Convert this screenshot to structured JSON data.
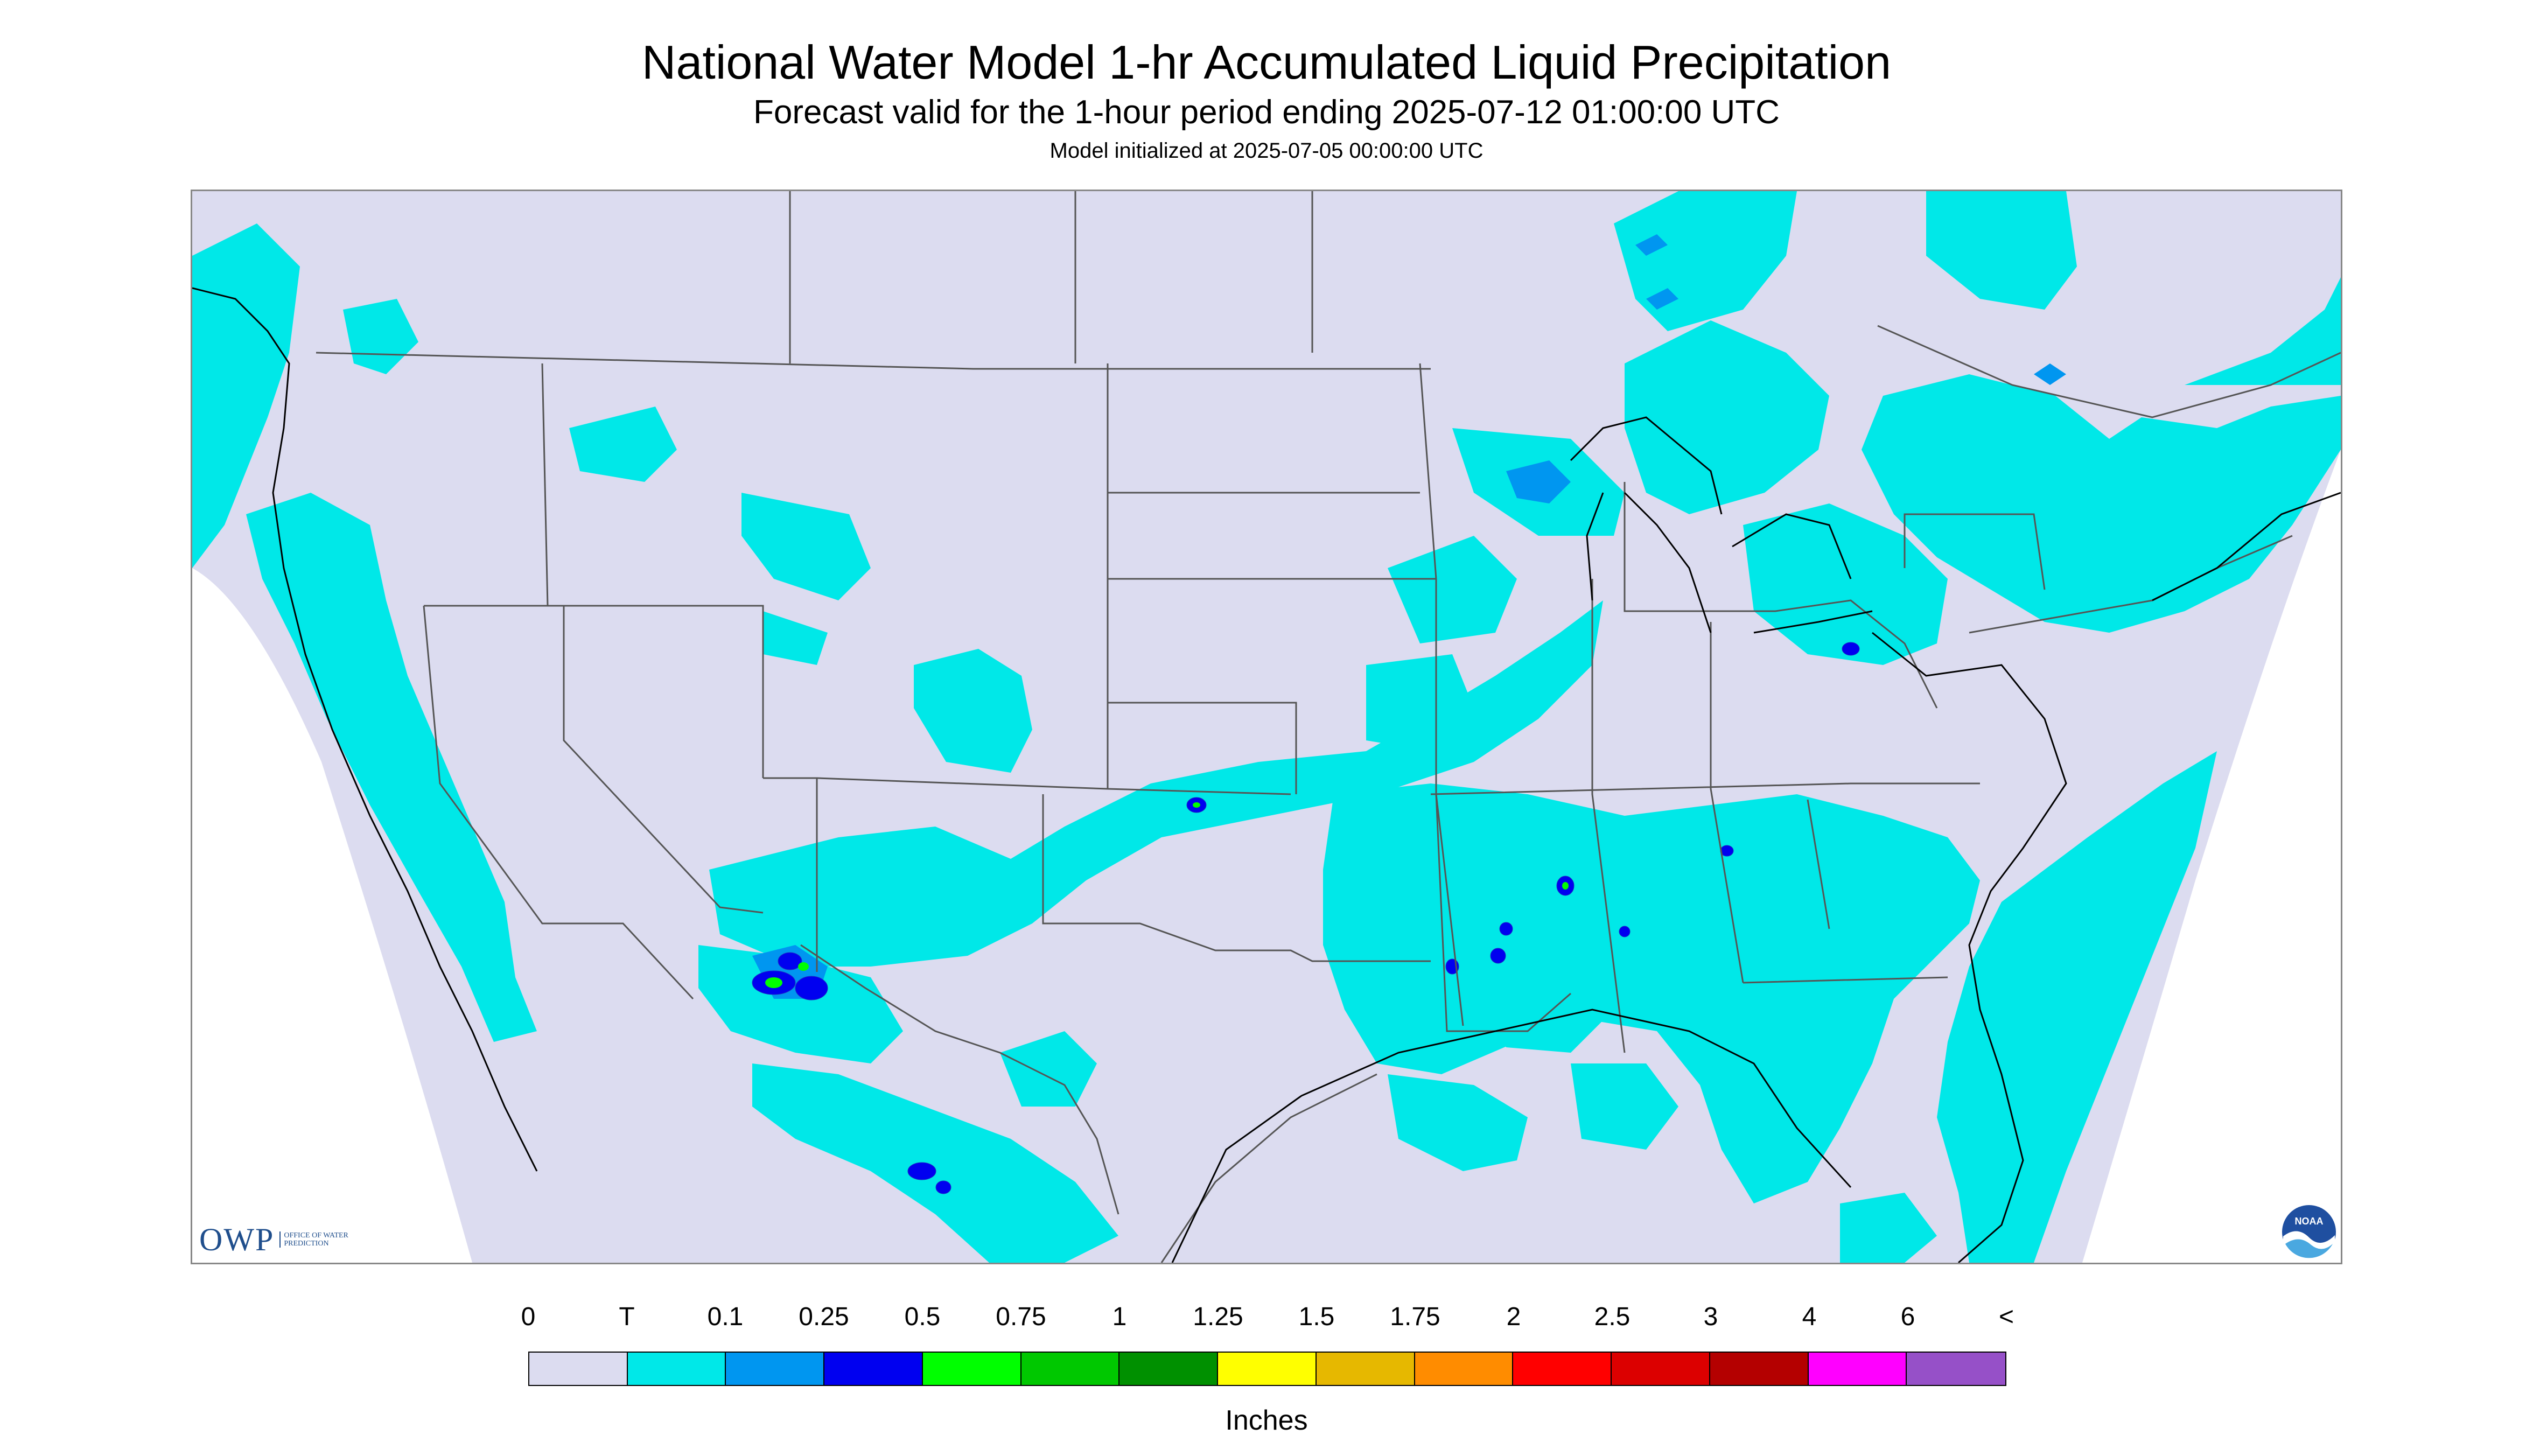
{
  "header": {
    "title": "National Water Model 1-hr Accumulated Liquid Precipitation",
    "subtitle": "Forecast valid for the 1-hour period ending 2025-07-12 01:00:00 UTC",
    "init": "Model initialized at 2025-07-05 00:00:00 UTC"
  },
  "logos": {
    "owp_main": "OWP",
    "owp_sub": "OFFICE OF WATER PREDICTION",
    "noaa": "NOAA"
  },
  "legend": {
    "labels": [
      "0",
      "T",
      "0.1",
      "0.25",
      "0.5",
      "0.75",
      "1",
      "1.25",
      "1.5",
      "1.75",
      "2",
      "2.5",
      "3",
      "4",
      "6",
      "<"
    ],
    "colors": [
      "#dcdcf0",
      "#00e8e8",
      "#0096f0",
      "#0000f0",
      "#00ff00",
      "#00c800",
      "#009000",
      "#ffff00",
      "#e6b800",
      "#ff8c00",
      "#ff0000",
      "#dc0000",
      "#b40000",
      "#ff00ff",
      "#9650c8"
    ],
    "units": "Inches"
  },
  "map": {
    "background_color": "#dcdcf0",
    "trace_color": "#00e8e8",
    "light_color": "#0096f0",
    "moderate_color": "#0000f0",
    "heavy_color": "#00ff00",
    "border_color": "#555555",
    "coast_color": "#000000"
  }
}
